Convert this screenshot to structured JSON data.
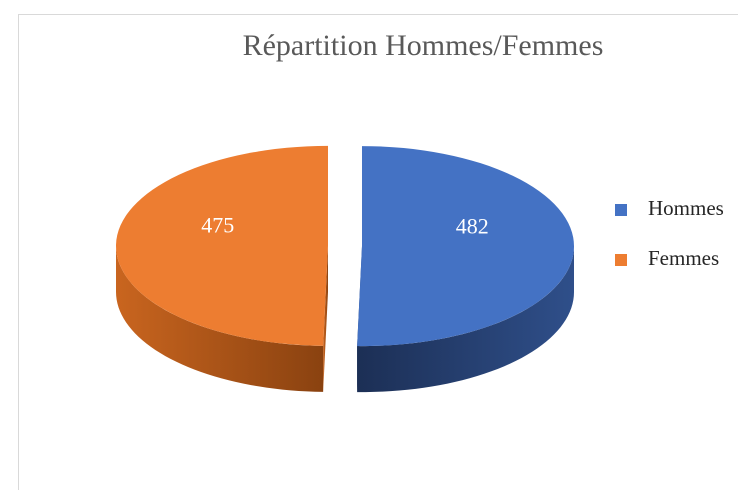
{
  "chart_data": {
    "type": "pie",
    "title": "Répartition Hommes/Femmes",
    "categories": [
      "Hommes",
      "Femmes"
    ],
    "values": [
      482,
      475
    ],
    "colors": [
      "#4472c4",
      "#ed7d31"
    ],
    "legend": "right"
  }
}
